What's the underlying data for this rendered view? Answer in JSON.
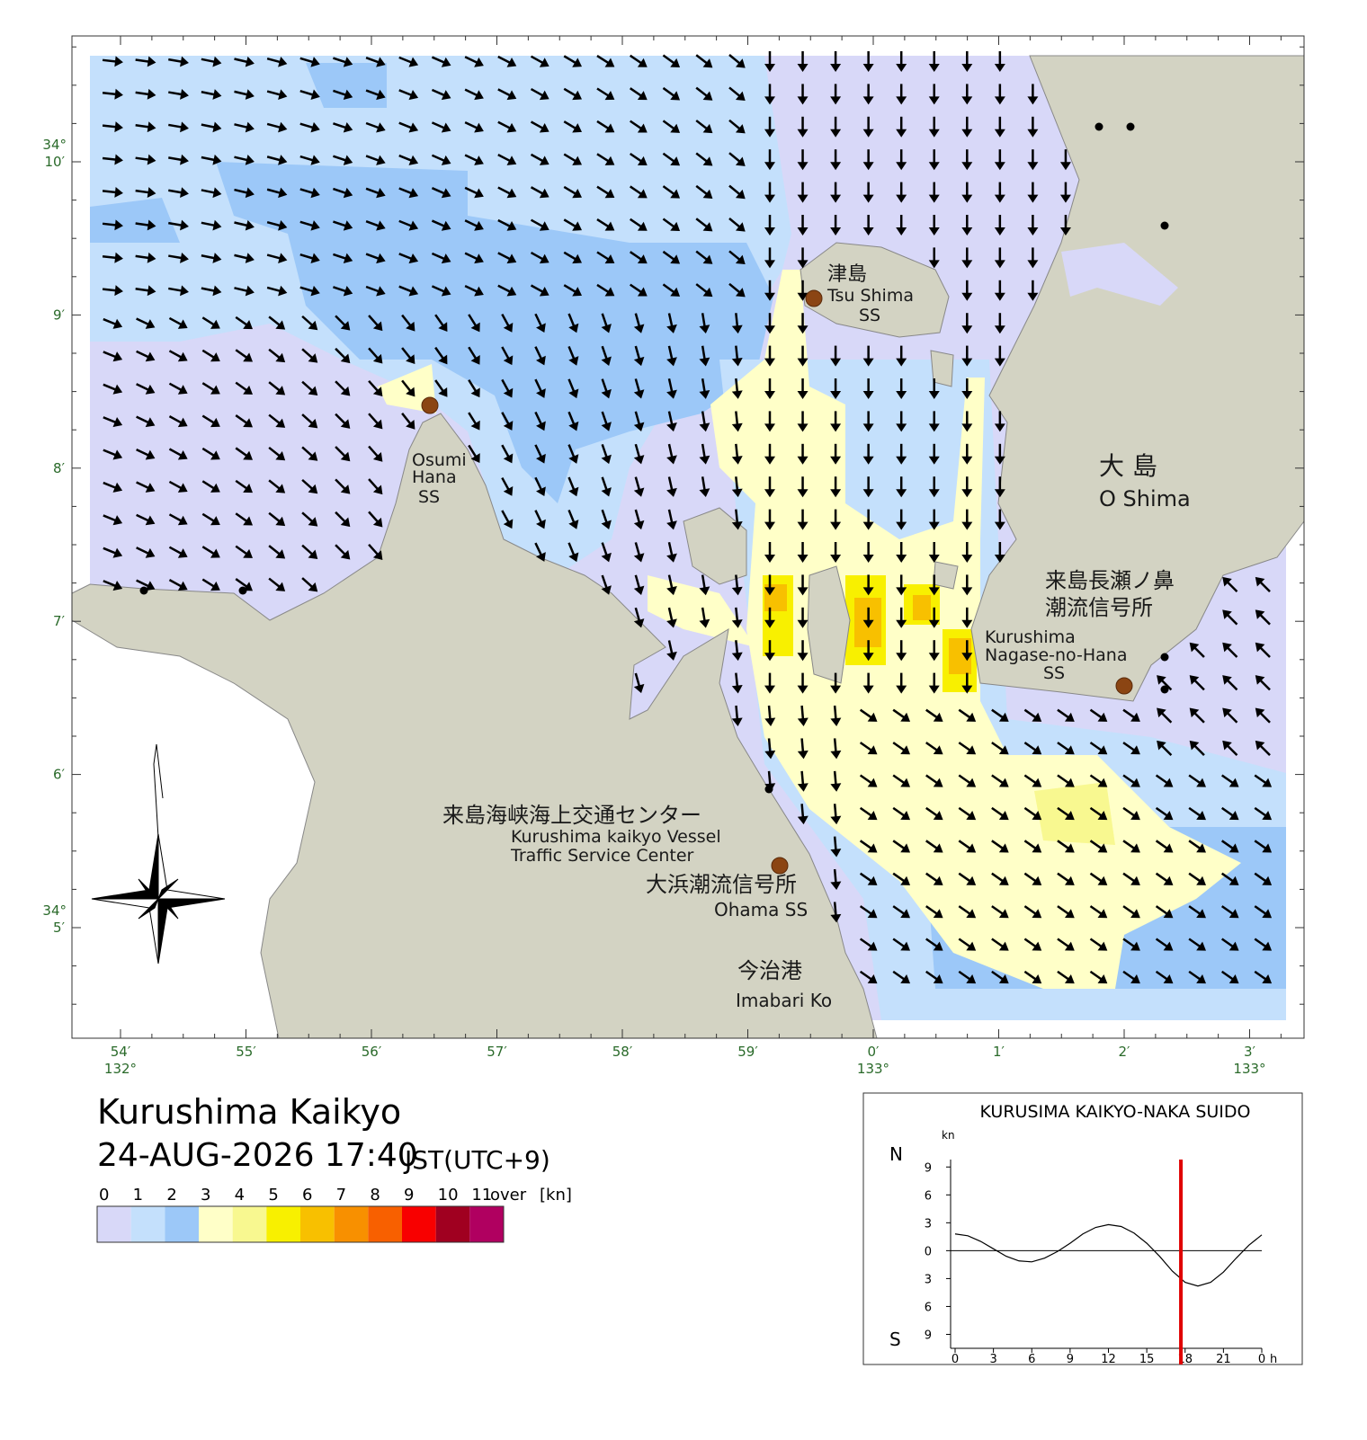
{
  "header": {
    "title": "Kurushima Kaikyo",
    "datetime": "24-AUG-2026 17:40",
    "timezone": "JST(UTC+9)"
  },
  "legend": {
    "ticks": [
      0,
      1,
      2,
      3,
      4,
      5,
      6,
      7,
      8,
      9,
      10,
      11
    ],
    "over": "over",
    "unit": "[kn]",
    "colors": [
      "#d8d8f8",
      "#c4e0fc",
      "#9cc8f8",
      "#ffffc8",
      "#f8f890",
      "#f8f000",
      "#f8c000",
      "#f89000",
      "#f86000",
      "#f80000",
      "#a00020",
      "#b00060"
    ]
  },
  "map": {
    "lon_ticks": [
      {
        "label": "54′",
        "deg": "132°"
      },
      {
        "label": "55′"
      },
      {
        "label": "56′"
      },
      {
        "label": "57′"
      },
      {
        "label": "58′"
      },
      {
        "label": "59′"
      },
      {
        "label": "0′",
        "deg": "133°"
      },
      {
        "label": "1′"
      },
      {
        "label": "2′"
      },
      {
        "label": "3′",
        "deg": "133°"
      }
    ],
    "lat_ticks": [
      {
        "label": "10′",
        "deg": "34°"
      },
      {
        "label": "9′"
      },
      {
        "label": "8′"
      },
      {
        "label": "7′"
      },
      {
        "label": "6′"
      },
      {
        "label": "5′",
        "deg": "34°"
      }
    ],
    "places": [
      {
        "lines": [
          "津島",
          "Tsu Shima",
          "SS"
        ]
      },
      {
        "lines": [
          "Osumi",
          "Hana",
          "SS"
        ]
      },
      {
        "lines": [
          "大 島",
          "O Shima"
        ]
      },
      {
        "lines": [
          "来島長瀬ノ鼻",
          "潮流信号所",
          "Kurushima",
          "Nagase-no-Hana",
          "SS"
        ]
      },
      {
        "lines": [
          "来島海峡海上交通センター",
          "Kurushima kaikyo Vessel",
          "Traffic Service Center"
        ]
      },
      {
        "lines": [
          "大浜潮流信号所",
          "Ohama SS"
        ]
      },
      {
        "lines": [
          "今治港",
          "Imabari Ko"
        ]
      }
    ]
  },
  "tide_chart": {
    "type": "line",
    "title": "KURUSIMA KAIKYO-NAKA SUIDO",
    "y_unit": "kn",
    "north": "N",
    "south": "S",
    "x_unit": "h",
    "x": [
      0,
      1,
      2,
      3,
      4,
      5,
      6,
      7,
      8,
      9,
      10,
      11,
      12,
      13,
      14,
      15,
      16,
      17,
      18,
      19,
      20,
      21,
      22,
      23,
      24
    ],
    "values": [
      1.8,
      1.6,
      1.0,
      0.2,
      -0.6,
      -1.1,
      -1.2,
      -0.8,
      -0.1,
      0.8,
      1.8,
      2.5,
      2.8,
      2.6,
      1.9,
      0.8,
      -0.6,
      -2.2,
      -3.4,
      -3.8,
      -3.4,
      -2.3,
      -0.8,
      0.6,
      1.7
    ],
    "color": "#000000",
    "xlim": [
      0,
      24
    ],
    "ylim": [
      -10.5,
      9.8
    ],
    "xticks": [
      0,
      3,
      6,
      9,
      12,
      15,
      18,
      21,
      {
        "value": 24,
        "label": "0"
      }
    ],
    "yticks": [
      {
        "value": 9,
        "label": "9"
      },
      {
        "value": 6,
        "label": "6"
      },
      {
        "value": 3,
        "label": "3"
      },
      0,
      {
        "value": -3,
        "label": "3"
      },
      {
        "value": -6,
        "label": "6"
      },
      {
        "value": -9,
        "label": "9"
      }
    ],
    "marker": 17.67,
    "marker_color": "#e00000"
  }
}
